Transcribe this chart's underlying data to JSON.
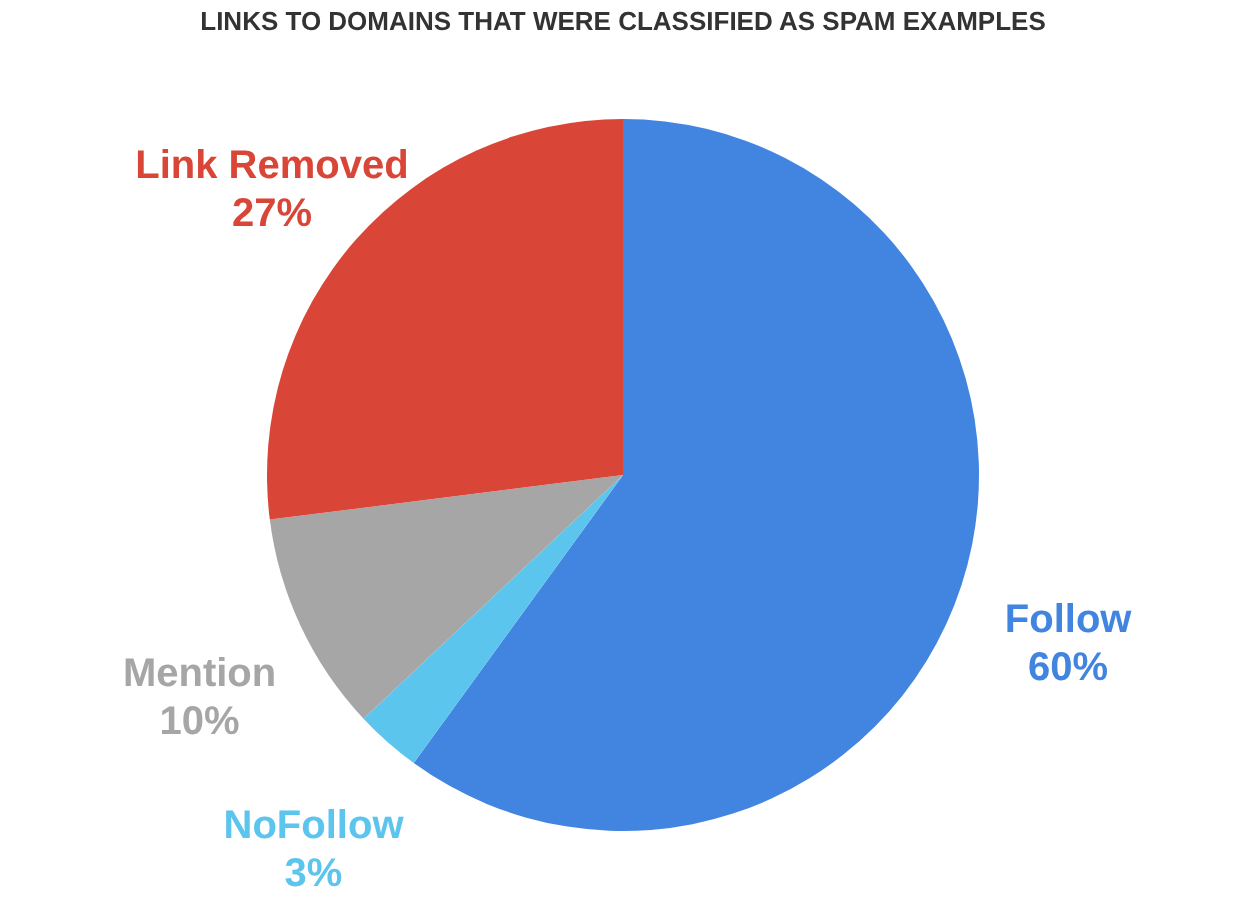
{
  "chart_data": {
    "type": "pie",
    "title": "LINKS TO DOMAINS THAT WERE CLASSIFIED AS SPAM EXAMPLES",
    "categories": [
      "Follow",
      "NoFollow",
      "Mention",
      "Link Removed"
    ],
    "values": [
      60,
      3,
      10,
      27
    ],
    "value_labels": [
      "60%",
      "3%",
      "10%",
      "27%"
    ],
    "colors": [
      "#4285e0",
      "#5bc5ee",
      "#a6a6a6",
      "#d94537"
    ],
    "legend": false
  }
}
